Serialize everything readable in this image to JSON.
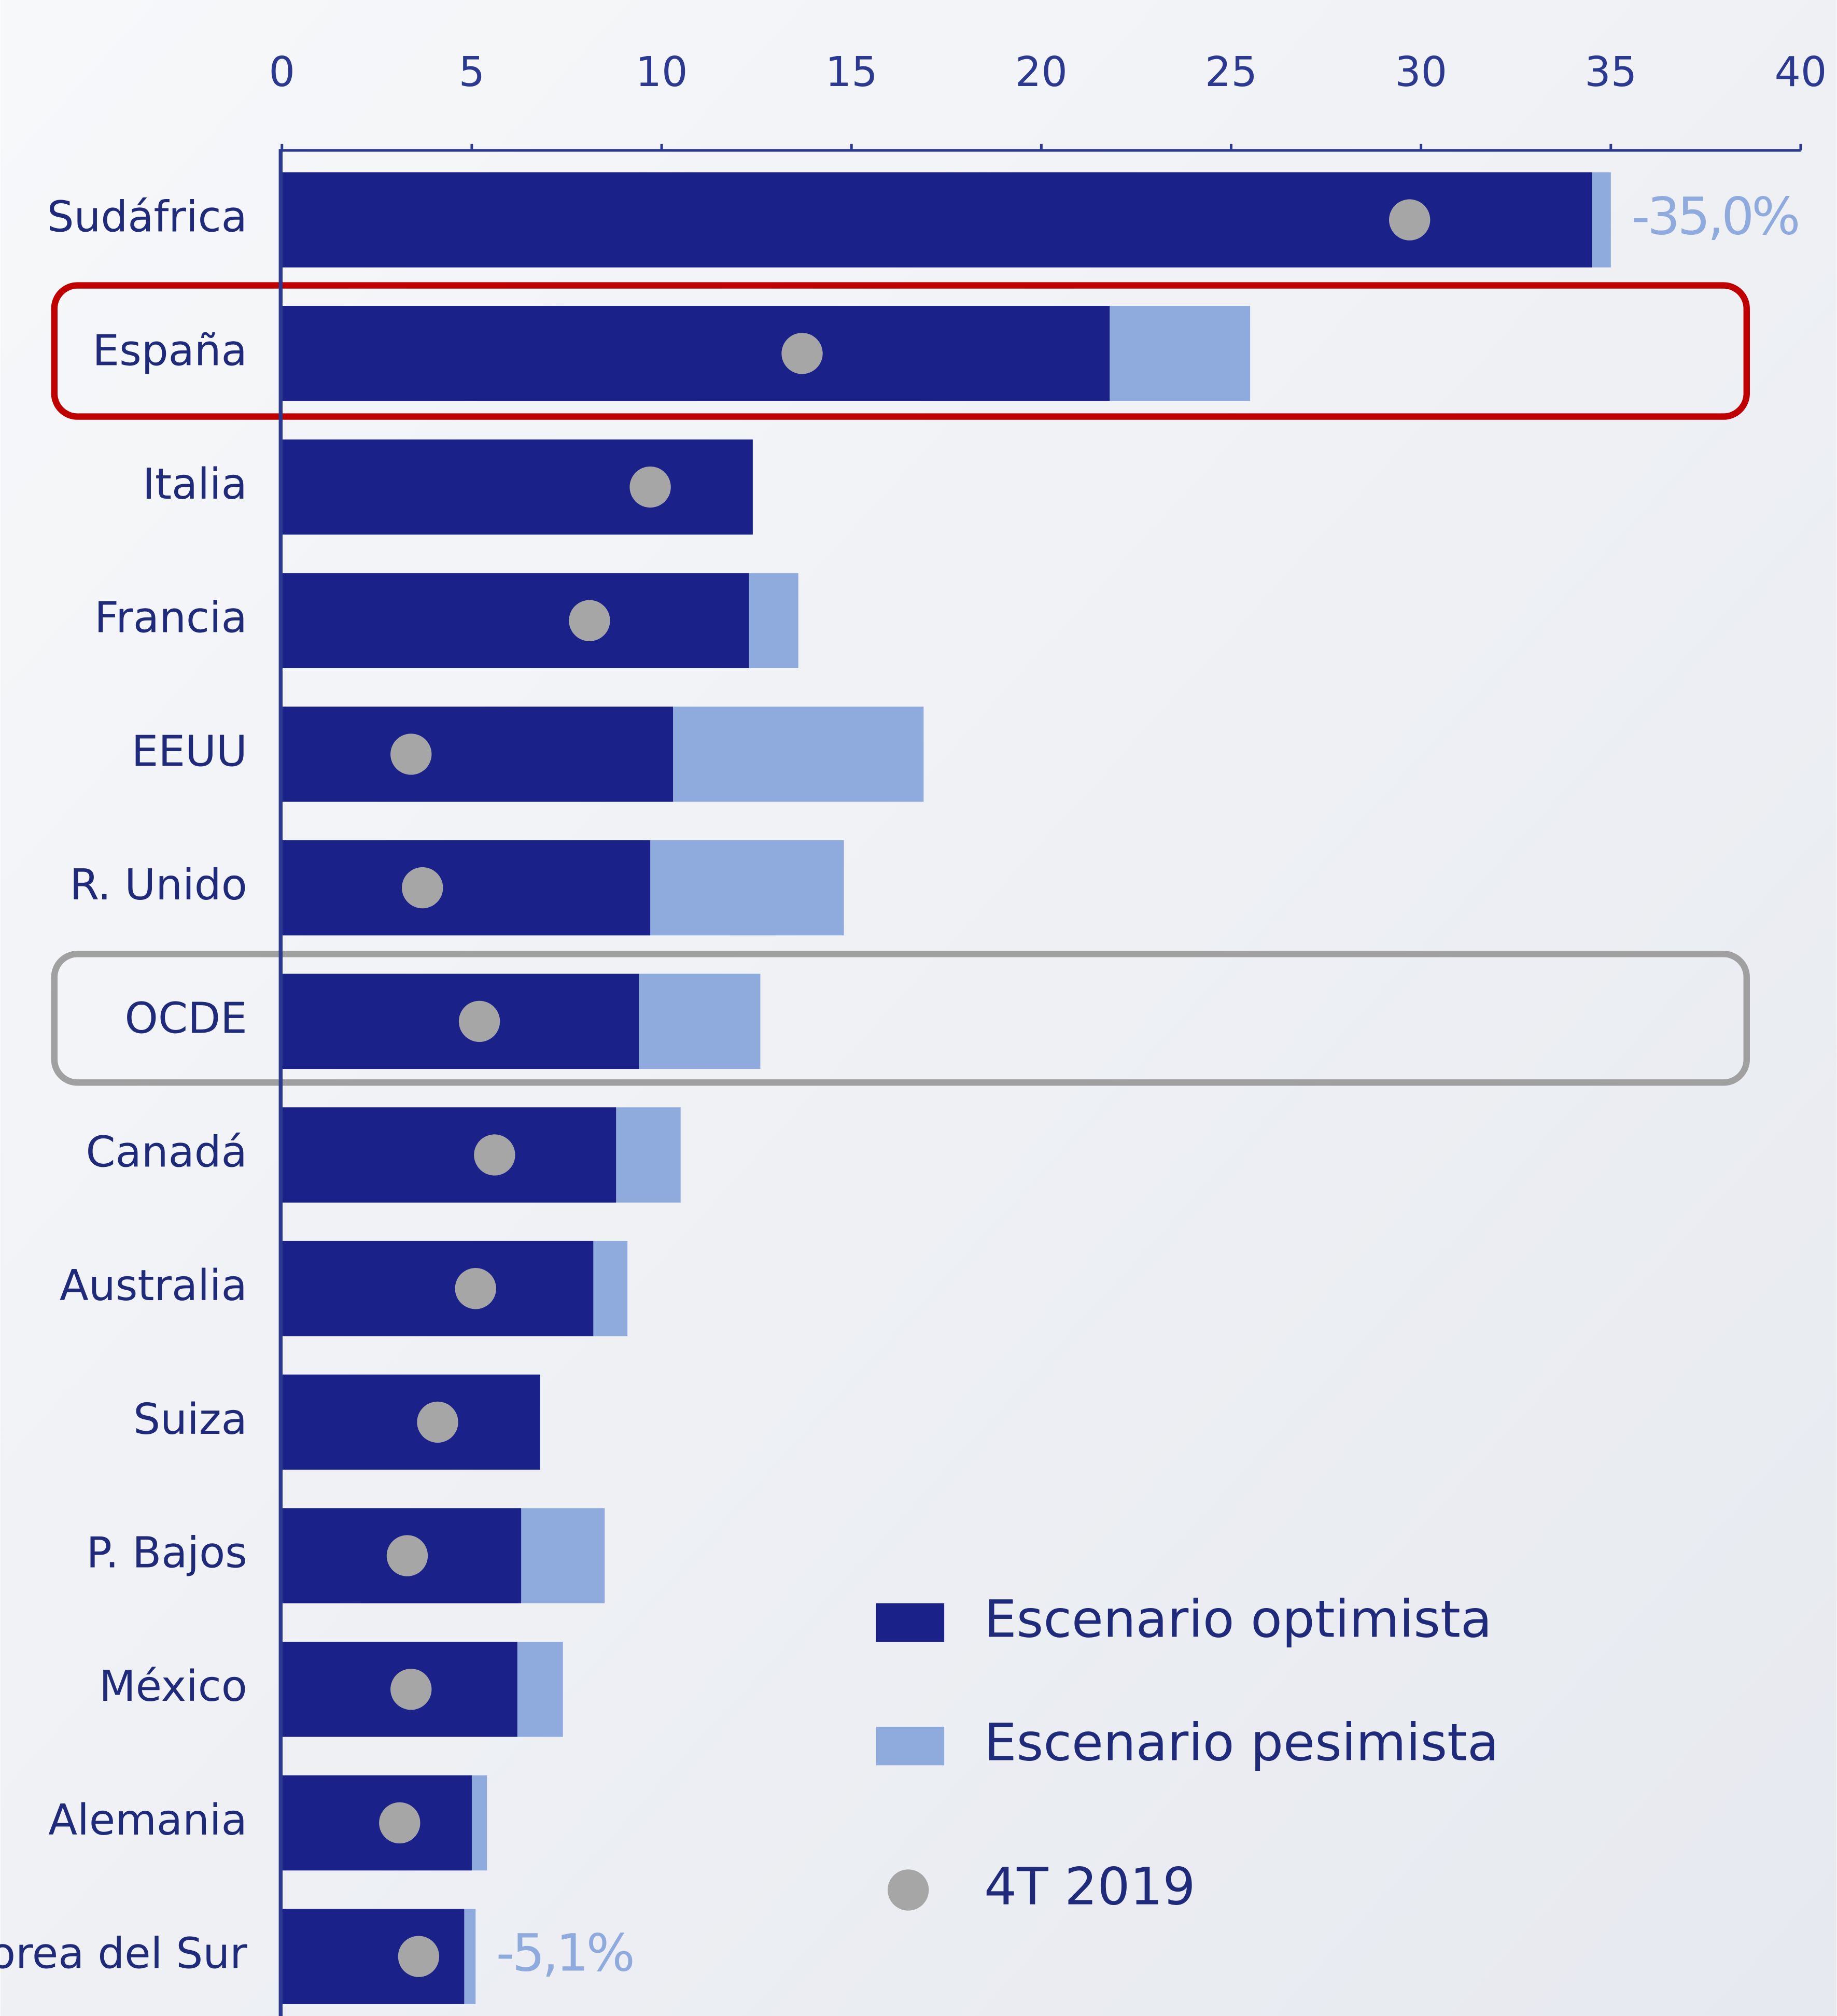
{
  "chart_data": {
    "type": "bar",
    "orientation": "horizontal",
    "categories": [
      "Sudáfrica",
      "España",
      "Italia",
      "Francia",
      "EEUU",
      "R. Unido",
      "OCDE",
      "Canadá",
      "Australia",
      "Suiza",
      "P. Bajos",
      "México",
      "Alemania",
      "Corea del Sur"
    ],
    "series": [
      {
        "name": "Escenario optimista",
        "color": "#1a2188",
        "values": [
          34.5,
          21.8,
          12.4,
          12.3,
          10.3,
          9.7,
          9.4,
          8.8,
          8.2,
          6.8,
          6.3,
          6.2,
          5.0,
          4.8
        ]
      },
      {
        "name": "Escenario pesimista",
        "color": "#8faadc",
        "values": [
          35.0,
          25.5,
          12.4,
          13.6,
          16.9,
          14.8,
          12.6,
          10.5,
          9.1,
          6.8,
          8.5,
          7.4,
          5.4,
          5.1
        ],
        "value_labels": [
          "-35,0%",
          null,
          null,
          null,
          null,
          null,
          null,
          null,
          null,
          null,
          null,
          null,
          null,
          "-5,1%"
        ]
      },
      {
        "name": "4T 2019",
        "color": "#a6a6a6",
        "marker": "dot",
        "values": [
          29.7,
          13.7,
          9.7,
          8.1,
          3.4,
          3.7,
          5.2,
          5.6,
          5.1,
          4.1,
          3.3,
          3.4,
          3.1,
          3.6
        ]
      }
    ],
    "xlim": [
      0,
      40
    ],
    "xticks": [
      0,
      5,
      10,
      15,
      20,
      25,
      30,
      35,
      40
    ]
  }
}
